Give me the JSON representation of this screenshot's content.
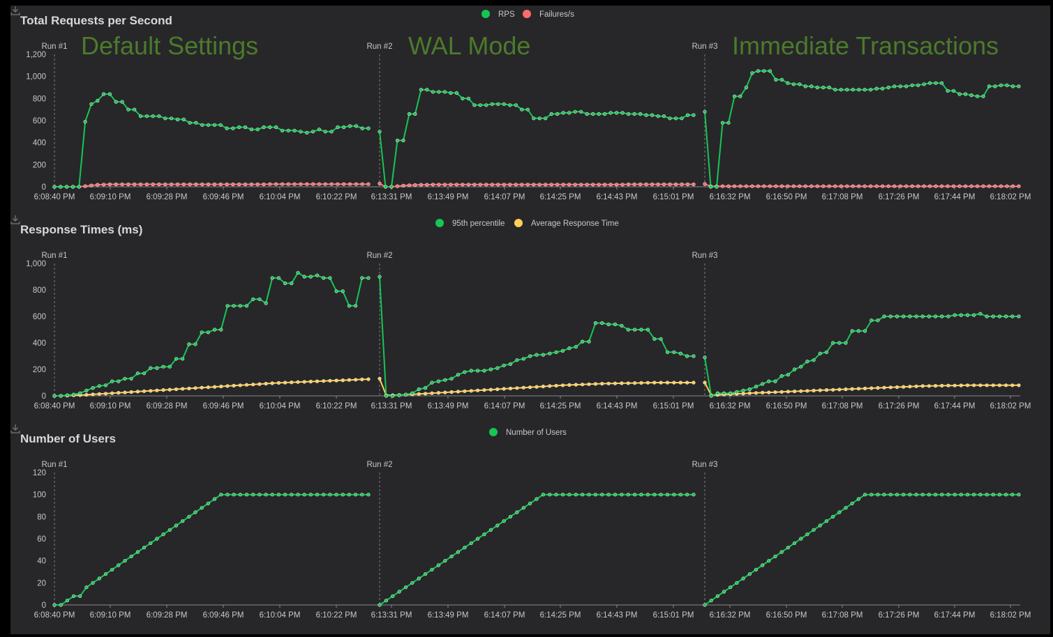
{
  "colors": {
    "rps": "#16c653",
    "fail": "#ff6b6b",
    "p95": "#16c653",
    "avg": "#ffcf56",
    "users": "#16c653"
  },
  "chart_data": [
    {
      "type": "line",
      "title": "Total Requests per Second",
      "ylim": [
        0,
        1200
      ],
      "yticks": [
        "0",
        "200",
        "400",
        "600",
        "800",
        "1,000",
        "1,200"
      ],
      "xticks": [
        "6:08:40 PM",
        "6:09:10 PM",
        "6:09:28 PM",
        "6:09:46 PM",
        "6:10:04 PM",
        "6:10:22 PM",
        "6:13:31 PM",
        "6:13:49 PM",
        "6:14:07 PM",
        "6:14:25 PM",
        "6:14:43 PM",
        "6:15:01 PM",
        "6:16:32 PM",
        "6:16:50 PM",
        "6:17:08 PM",
        "6:17:26 PM",
        "6:17:44 PM",
        "6:18:02 PM"
      ],
      "legend": [
        "RPS",
        "Failures/s"
      ],
      "runs": [
        "Run #1",
        "Run #2",
        "Run #3"
      ],
      "annotations": [
        "Default Settings",
        "WAL Mode",
        "Immediate Transactions"
      ],
      "series": [
        {
          "name": "RPS",
          "runs": [
            [
              0,
              0,
              0,
              0,
              0,
              590,
              750,
              780,
              840,
              840,
              770,
              770,
              700,
              700,
              640,
              640,
              640,
              640,
              620,
              620,
              610,
              610,
              580,
              580,
              560,
              560,
              560,
              560,
              530,
              530,
              540,
              540,
              520,
              520,
              540,
              540,
              540,
              510,
              510,
              510,
              500,
              490,
              500,
              520,
              500,
              500,
              540,
              540,
              550,
              550,
              530,
              530
            ],
            [
              500,
              0,
              0,
              420,
              420,
              660,
              660,
              880,
              880,
              860,
              860,
              860,
              850,
              850,
              800,
              800,
              740,
              740,
              740,
              750,
              750,
              750,
              740,
              740,
              700,
              700,
              620,
              620,
              620,
              660,
              660,
              670,
              670,
              680,
              680,
              660,
              660,
              660,
              660,
              670,
              670,
              670,
              660,
              660,
              660,
              650,
              650,
              640,
              640,
              620,
              620,
              620,
              650,
              650
            ],
            [
              680,
              0,
              0,
              580,
              580,
              820,
              820,
              900,
              1030,
              1050,
              1050,
              1050,
              970,
              970,
              940,
              930,
              930,
              910,
              910,
              900,
              900,
              900,
              880,
              880,
              880,
              880,
              880,
              880,
              880,
              890,
              890,
              900,
              910,
              910,
              910,
              920,
              920,
              930,
              940,
              940,
              940,
              870,
              870,
              840,
              840,
              830,
              820,
              820,
              910,
              910,
              920,
              920,
              910,
              910
            ]
          ]
        },
        {
          "name": "Failures/s",
          "runs": [
            [
              0,
              0,
              0,
              0,
              0,
              6,
              12,
              18,
              20,
              22,
              22,
              22,
              22,
              22,
              22,
              22,
              22,
              22,
              22,
              22,
              22,
              22,
              22,
              22,
              22,
              22,
              22,
              22,
              22,
              22,
              22,
              22,
              22,
              22,
              22,
              24,
              24,
              24,
              24,
              24,
              24,
              24,
              24,
              24,
              24,
              24,
              24,
              24,
              24,
              24,
              24,
              24
            ],
            [
              30,
              0,
              0,
              6,
              10,
              14,
              16,
              18,
              18,
              20,
              20,
              20,
              20,
              20,
              20,
              20,
              20,
              20,
              20,
              20,
              20,
              20,
              20,
              20,
              20,
              20,
              20,
              20,
              20,
              20,
              20,
              20,
              20,
              20,
              20,
              20,
              20,
              20,
              20,
              20,
              20,
              20,
              22,
              22,
              22,
              22,
              22,
              22,
              22,
              22,
              22,
              22,
              22,
              22
            ],
            [
              25,
              5,
              5,
              5,
              5,
              5,
              5,
              5,
              5,
              5,
              5,
              5,
              5,
              5,
              5,
              5,
              5,
              5,
              5,
              5,
              5,
              5,
              5,
              5,
              5,
              5,
              5,
              5,
              5,
              5,
              5,
              5,
              5,
              5,
              5,
              5,
              5,
              5,
              5,
              5,
              5,
              5,
              5,
              5,
              5,
              5,
              5,
              5,
              5,
              5,
              5,
              5,
              5,
              5
            ]
          ]
        }
      ]
    },
    {
      "type": "line",
      "title": "Response Times (ms)",
      "ylim": [
        0,
        1000
      ],
      "yticks": [
        "0",
        "200",
        "400",
        "600",
        "800",
        "1,000"
      ],
      "xticks": [
        "6:08:40 PM",
        "6:09:10 PM",
        "6:09:28 PM",
        "6:09:46 PM",
        "6:10:04 PM",
        "6:10:22 PM",
        "6:13:31 PM",
        "6:13:49 PM",
        "6:14:07 PM",
        "6:14:25 PM",
        "6:14:43 PM",
        "6:15:01 PM",
        "6:16:32 PM",
        "6:16:50 PM",
        "6:17:08 PM",
        "6:17:26 PM",
        "6:17:44 PM",
        "6:18:02 PM"
      ],
      "legend": [
        "95th percentile",
        "Average Response Time"
      ],
      "runs": [
        "Run #1",
        "Run #2",
        "Run #3"
      ],
      "series": [
        {
          "name": "95th percentile",
          "runs": [
            [
              0,
              0,
              5,
              10,
              20,
              40,
              60,
              75,
              80,
              110,
              110,
              130,
              130,
              170,
              170,
              210,
              210,
              220,
              220,
              280,
              280,
              390,
              390,
              480,
              480,
              500,
              500,
              680,
              680,
              680,
              680,
              730,
              730,
              700,
              890,
              890,
              850,
              850,
              930,
              900,
              900,
              910,
              890,
              890,
              790,
              790,
              680,
              680,
              890,
              890
            ],
            [
              900,
              0,
              0,
              5,
              10,
              20,
              50,
              60,
              100,
              110,
              120,
              130,
              160,
              180,
              190,
              190,
              190,
              200,
              210,
              230,
              240,
              270,
              280,
              300,
              310,
              310,
              320,
              330,
              340,
              360,
              370,
              410,
              410,
              550,
              550,
              540,
              540,
              530,
              500,
              500,
              500,
              500,
              430,
              430,
              330,
              330,
              320,
              300,
              300
            ],
            [
              290,
              0,
              20,
              20,
              20,
              30,
              40,
              50,
              70,
              90,
              110,
              110,
              150,
              160,
              200,
              220,
              260,
              270,
              320,
              330,
              400,
              400,
              400,
              490,
              490,
              490,
              570,
              570,
              600,
              600,
              600,
              600,
              600,
              600,
              600,
              600,
              600,
              600,
              600,
              610,
              610,
              610,
              610,
              620,
              600,
              600,
              600,
              600,
              600,
              600
            ]
          ]
        },
        {
          "name": "Average Response Time",
          "runs": [
            [
              0,
              0,
              2,
              4,
              6,
              8,
              11,
              14,
              17,
              20,
              23,
              26,
              29,
              32,
              35,
              38,
              41,
              44,
              47,
              50,
              53,
              56,
              59,
              62,
              65,
              68,
              71,
              74,
              77,
              80,
              83,
              86,
              89,
              92,
              95,
              98,
              100,
              102,
              104,
              106,
              108,
              110,
              112,
              114,
              116,
              118,
              120,
              122,
              124,
              126
            ],
            [
              130,
              5,
              5,
              7,
              9,
              11,
              14,
              17,
              20,
              23,
              26,
              29,
              32,
              35,
              38,
              41,
              44,
              47,
              50,
              53,
              56,
              59,
              62,
              65,
              68,
              71,
              74,
              77,
              80,
              82,
              84,
              86,
              88,
              90,
              92,
              93,
              94,
              95,
              96,
              97,
              98,
              99,
              100,
              100,
              100,
              100,
              100,
              100,
              100
            ],
            [
              100,
              5,
              8,
              10,
              12,
              15,
              17,
              20,
              22,
              24,
              26,
              28,
              30,
              32,
              34,
              36,
              38,
              40,
              42,
              44,
              46,
              48,
              50,
              52,
              54,
              56,
              58,
              60,
              62,
              64,
              66,
              68,
              70,
              72,
              74,
              75,
              76,
              77,
              78,
              78,
              79,
              80,
              80,
              80,
              80,
              80,
              80,
              80,
              80,
              80
            ]
          ]
        }
      ]
    },
    {
      "type": "line",
      "title": "Number of Users",
      "ylim": [
        0,
        120
      ],
      "yticks": [
        "0",
        "20",
        "40",
        "60",
        "80",
        "100",
        "120"
      ],
      "xticks": [
        "6:08:40 PM",
        "6:09:10 PM",
        "6:09:28 PM",
        "6:09:46 PM",
        "6:10:04 PM",
        "6:10:22 PM",
        "6:13:31 PM",
        "6:13:49 PM",
        "6:14:07 PM",
        "6:14:25 PM",
        "6:14:43 PM",
        "6:15:01 PM",
        "6:16:32 PM",
        "6:16:50 PM",
        "6:17:08 PM",
        "6:17:26 PM",
        "6:17:44 PM",
        "6:18:02 PM"
      ],
      "legend": [
        "Number of Users"
      ],
      "runs": [
        "Run #1",
        "Run #2",
        "Run #3"
      ],
      "series": [
        {
          "name": "Number of Users",
          "runs": [
            [
              0,
              0,
              4,
              8,
              8,
              16,
              20,
              24,
              28,
              32,
              36,
              40,
              44,
              48,
              52,
              56,
              60,
              64,
              68,
              72,
              76,
              80,
              84,
              88,
              92,
              96,
              100,
              100,
              100,
              100,
              100,
              100,
              100,
              100,
              100,
              100,
              100,
              100,
              100,
              100,
              100,
              100,
              100,
              100,
              100,
              100,
              100,
              100,
              100,
              100
            ],
            [
              0,
              4,
              8,
              12,
              16,
              20,
              24,
              28,
              32,
              36,
              40,
              44,
              48,
              52,
              56,
              60,
              64,
              68,
              72,
              76,
              80,
              84,
              88,
              92,
              96,
              100,
              100,
              100,
              100,
              100,
              100,
              100,
              100,
              100,
              100,
              100,
              100,
              100,
              100,
              100,
              100,
              100,
              100,
              100,
              100,
              100,
              100,
              100,
              100
            ],
            [
              0,
              4,
              8,
              12,
              16,
              20,
              24,
              28,
              32,
              36,
              40,
              44,
              48,
              52,
              56,
              60,
              64,
              68,
              72,
              76,
              80,
              84,
              88,
              92,
              96,
              100,
              100,
              100,
              100,
              100,
              100,
              100,
              100,
              100,
              100,
              100,
              100,
              100,
              100,
              100,
              100,
              100,
              100,
              100,
              100,
              100,
              100,
              100,
              100,
              100
            ]
          ]
        }
      ]
    }
  ]
}
